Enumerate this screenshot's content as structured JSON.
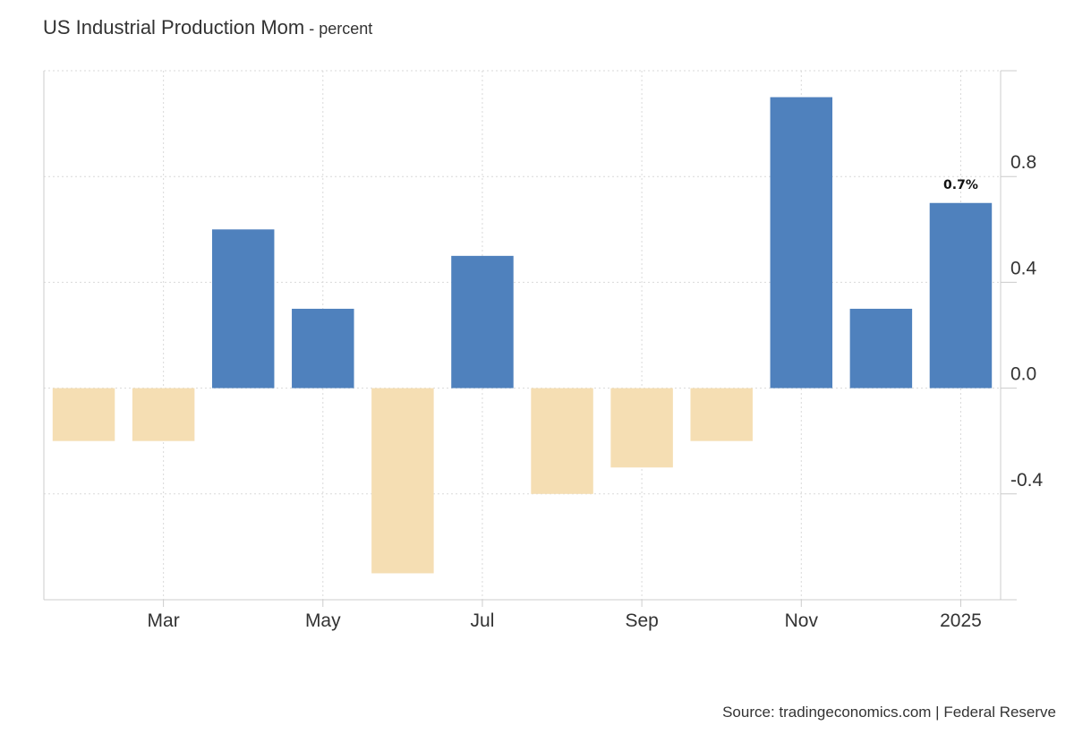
{
  "header": {
    "title": "US Industrial Production Mom",
    "subtitle_sep": " - ",
    "subtitle": "percent"
  },
  "footer": {
    "source": "Source: tradingeconomics.com | Federal Reserve"
  },
  "colors": {
    "positive": "#4f81bd",
    "negative": "#f5deb3",
    "grid": "#d9d9d9",
    "axis": "#cccccc"
  },
  "chart_data": {
    "type": "bar",
    "title": "US Industrial Production Mom",
    "subtitle": "percent",
    "categories": [
      "2024-02",
      "2024-03",
      "2024-04",
      "2024-05",
      "2024-06",
      "2024-07",
      "2024-08",
      "2024-09",
      "2024-10",
      "2024-11",
      "2024-12",
      "2025-01"
    ],
    "values": [
      -0.2,
      -0.2,
      0.6,
      0.3,
      -0.7,
      0.5,
      -0.4,
      -0.3,
      -0.2,
      1.1,
      0.3,
      0.7
    ],
    "x_tick_labels": [
      {
        "label": "Mar",
        "at": "2024-03"
      },
      {
        "label": "May",
        "at": "2024-05"
      },
      {
        "label": "Jul",
        "at": "2024-07"
      },
      {
        "label": "Sep",
        "at": "2024-09"
      },
      {
        "label": "Nov",
        "at": "2024-11"
      },
      {
        "label": "2025",
        "at": "2025-01"
      }
    ],
    "y_ticks": [
      -0.4,
      0.0,
      0.4,
      0.8
    ],
    "y_tick_labels": [
      "-0.4",
      "0.0",
      "0.4",
      "0.8"
    ],
    "ylim": [
      -0.8,
      1.2
    ],
    "y_axis_side": "right",
    "grid": true,
    "legend": "none",
    "annotations": [
      {
        "category": "2025-01",
        "text": "0.7%"
      }
    ]
  }
}
